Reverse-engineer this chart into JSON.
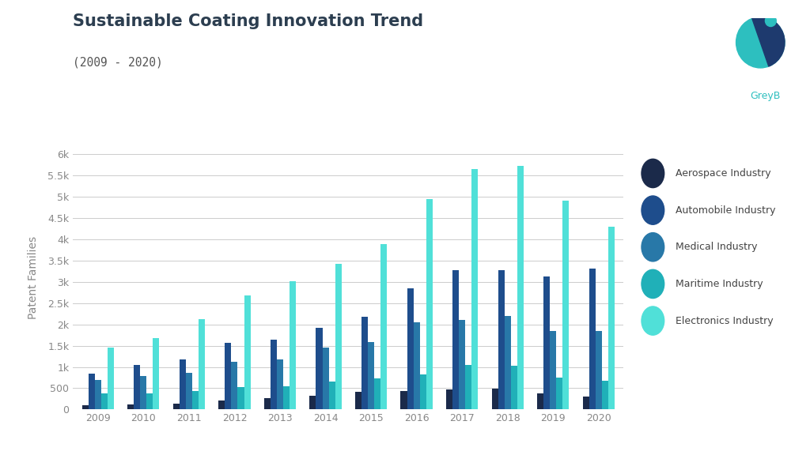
{
  "title": "Sustainable Coating Innovation Trend",
  "subtitle": "(2009 - 2020)",
  "ylabel": "Patent Families",
  "years": [
    2009,
    2010,
    2011,
    2012,
    2013,
    2014,
    2015,
    2016,
    2017,
    2018,
    2019,
    2020
  ],
  "series": {
    "Aerospace Industry": [
      100,
      120,
      130,
      220,
      270,
      330,
      420,
      430,
      470,
      490,
      370,
      310
    ],
    "Automobile Industry": [
      850,
      1050,
      1180,
      1560,
      1640,
      1920,
      2180,
      2850,
      3280,
      3280,
      3120,
      3320
    ],
    "Medical Industry": [
      700,
      780,
      870,
      1120,
      1180,
      1460,
      1580,
      2050,
      2100,
      2200,
      1850,
      1850
    ],
    "Maritime Industry": [
      380,
      380,
      430,
      530,
      540,
      650,
      730,
      820,
      1050,
      1030,
      750,
      680
    ],
    "Electronics Industry": [
      1450,
      1680,
      2120,
      2680,
      3020,
      3420,
      3880,
      4950,
      5650,
      5730,
      4900,
      4300
    ]
  },
  "colors": {
    "Aerospace Industry": "#1b2a4a",
    "Automobile Industry": "#1e4d8c",
    "Medical Industry": "#2878a8",
    "Maritime Industry": "#20b0b8",
    "Electronics Industry": "#50e0d8"
  },
  "ylim": [
    0,
    6200
  ],
  "yticks": [
    0,
    500,
    1000,
    1500,
    2000,
    2500,
    3000,
    3500,
    4000,
    4500,
    5000,
    5500,
    6000
  ],
  "ytick_labels": [
    "0",
    "500",
    "1k",
    "1.5k",
    "2k",
    "2.5k",
    "3k",
    "3.5k",
    "4k",
    "4.5k",
    "5k",
    "5.5k",
    "6k"
  ],
  "background_color": "#ffffff",
  "grid_color": "#cccccc",
  "bar_width": 0.14,
  "logo_text": "GreyB",
  "title_color": "#2c3e50",
  "subtitle_color": "#555555",
  "tick_color": "#888888",
  "legend_label_color": "#444444"
}
